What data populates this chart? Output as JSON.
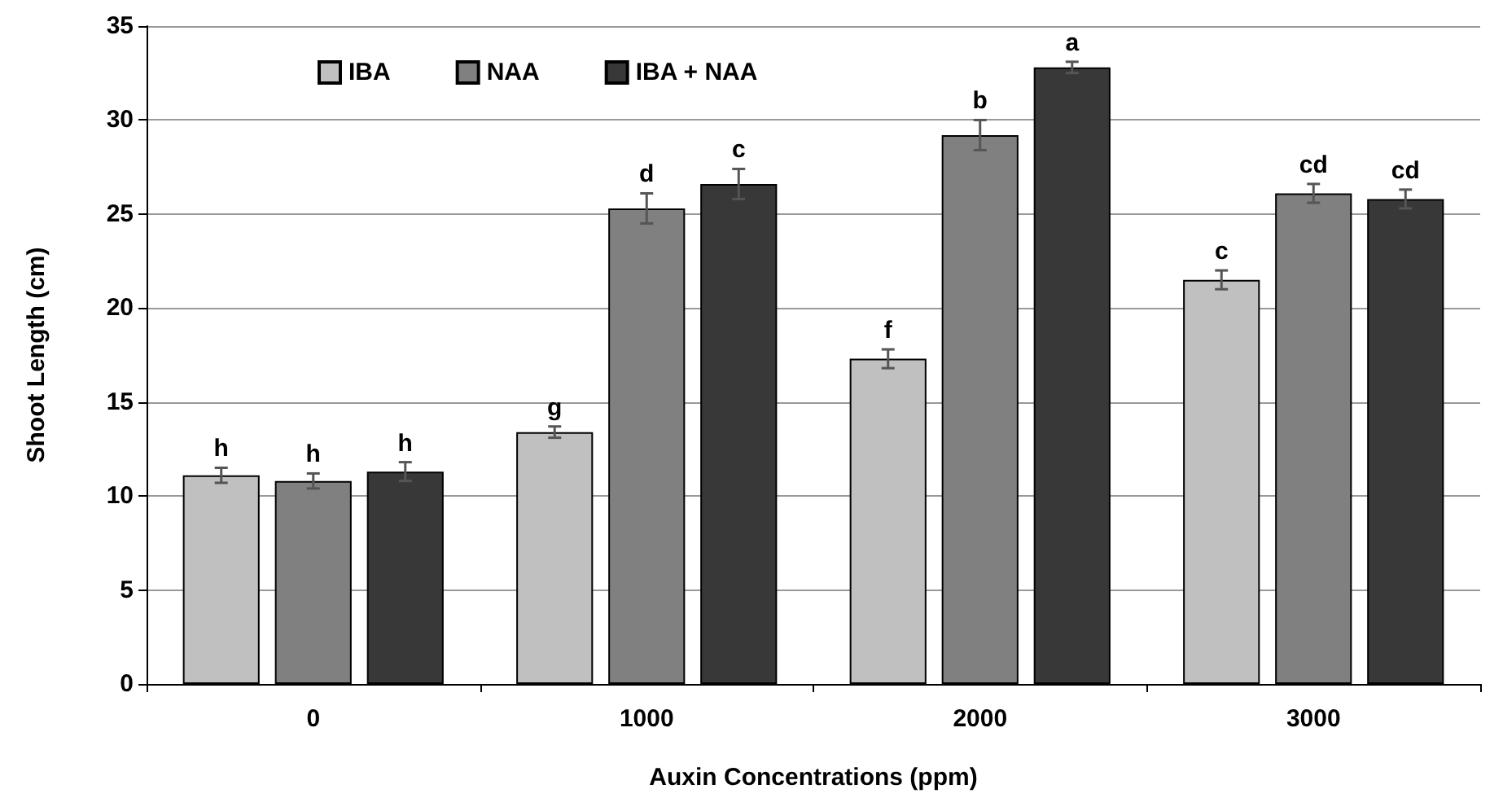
{
  "chart_data": {
    "type": "bar",
    "xlabel": "Auxin Concentrations (ppm)",
    "ylabel": "Shoot Length (cm)",
    "categories": [
      "0",
      "1000",
      "2000",
      "3000"
    ],
    "series": [
      {
        "name": "IBA",
        "color": "#c0c0c0",
        "values": [
          11.1,
          13.4,
          17.3,
          21.5
        ],
        "errors": [
          0.4,
          0.3,
          0.5,
          0.5
        ],
        "value_labels": [
          "h",
          "g",
          "f",
          "c"
        ]
      },
      {
        "name": "NAA",
        "color": "#808080",
        "values": [
          10.8,
          25.3,
          29.2,
          26.1
        ],
        "errors": [
          0.4,
          0.8,
          0.8,
          0.5
        ],
        "value_labels": [
          "h",
          "d",
          "b",
          "cd"
        ]
      },
      {
        "name": "IBA + NAA",
        "color": "#383838",
        "values": [
          11.3,
          26.6,
          32.8,
          25.8
        ],
        "errors": [
          0.5,
          0.8,
          0.3,
          0.5
        ],
        "value_labels": [
          "h",
          "c",
          "a",
          "cd"
        ]
      }
    ],
    "ylim": [
      0,
      35
    ],
    "yticks": [
      0,
      5,
      10,
      15,
      20,
      25,
      30,
      35
    ],
    "grid": "y",
    "legend": "top left"
  }
}
